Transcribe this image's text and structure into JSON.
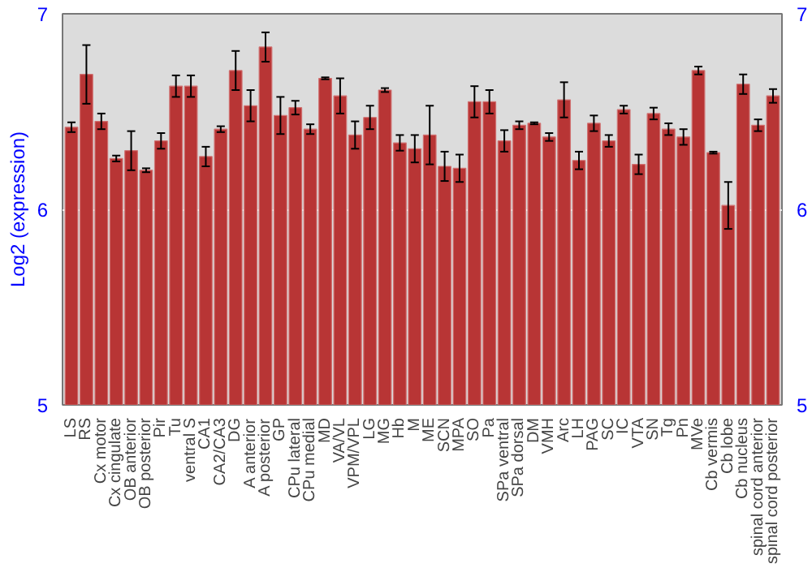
{
  "chart_data": {
    "type": "bar",
    "ylabel": "Log2 (expression)",
    "categories": [
      "LS",
      "RS",
      "Cx motor",
      "Cx cingulate",
      "OB anterior",
      "OB posterior",
      "Pir",
      "Tu",
      "ventral S",
      "CA1",
      "CA2/CA3",
      "DG",
      "A anterior",
      "A posterior",
      "GP",
      "CPu lateral",
      "CPu medial",
      "MD",
      "VA/VL",
      "VPM/VPL",
      "LG",
      "MG",
      "Hb",
      "M",
      "ME",
      "SCN",
      "MPA",
      "SO",
      "Pa",
      "SPa ventral",
      "SPa dorsal",
      "DM",
      "VMH",
      "Arc",
      "LH",
      "PAG",
      "SC",
      "IC",
      "VTA",
      "SN",
      "Tg",
      "Pn",
      "MVe",
      "Cb vermis",
      "Cb lobe",
      "Cb nucleus",
      "spinal cord anterior",
      "spinal cord posterior"
    ],
    "values": [
      6.42,
      6.69,
      6.45,
      6.26,
      6.3,
      6.2,
      6.35,
      6.63,
      6.63,
      6.27,
      6.41,
      6.71,
      6.53,
      6.83,
      6.48,
      6.52,
      6.41,
      6.67,
      6.58,
      6.38,
      6.47,
      6.61,
      6.34,
      6.31,
      6.38,
      6.22,
      6.21,
      6.55,
      6.55,
      6.35,
      6.43,
      6.44,
      6.37,
      6.56,
      6.25,
      6.44,
      6.35,
      6.51,
      6.23,
      6.49,
      6.41,
      6.37,
      6.71,
      6.29,
      6.02,
      6.64,
      6.43,
      6.58
    ],
    "errors": [
      0.025,
      0.15,
      0.04,
      0.015,
      0.1,
      0.01,
      0.04,
      0.055,
      0.055,
      0.05,
      0.015,
      0.1,
      0.08,
      0.075,
      0.095,
      0.035,
      0.025,
      0.005,
      0.09,
      0.07,
      0.06,
      0.01,
      0.04,
      0.07,
      0.15,
      0.075,
      0.07,
      0.08,
      0.06,
      0.055,
      0.02,
      0.005,
      0.02,
      0.09,
      0.045,
      0.04,
      0.03,
      0.02,
      0.05,
      0.03,
      0.03,
      0.04,
      0.02,
      0.005,
      0.12,
      0.05,
      0.03,
      0.035
    ],
    "color": "#b83535",
    "ylim": [
      5,
      7
    ],
    "yticks": [
      5,
      6,
      7
    ],
    "y2lim": [
      5,
      7
    ],
    "y2ticks": [
      5,
      6,
      7
    ],
    "grid": "y"
  }
}
